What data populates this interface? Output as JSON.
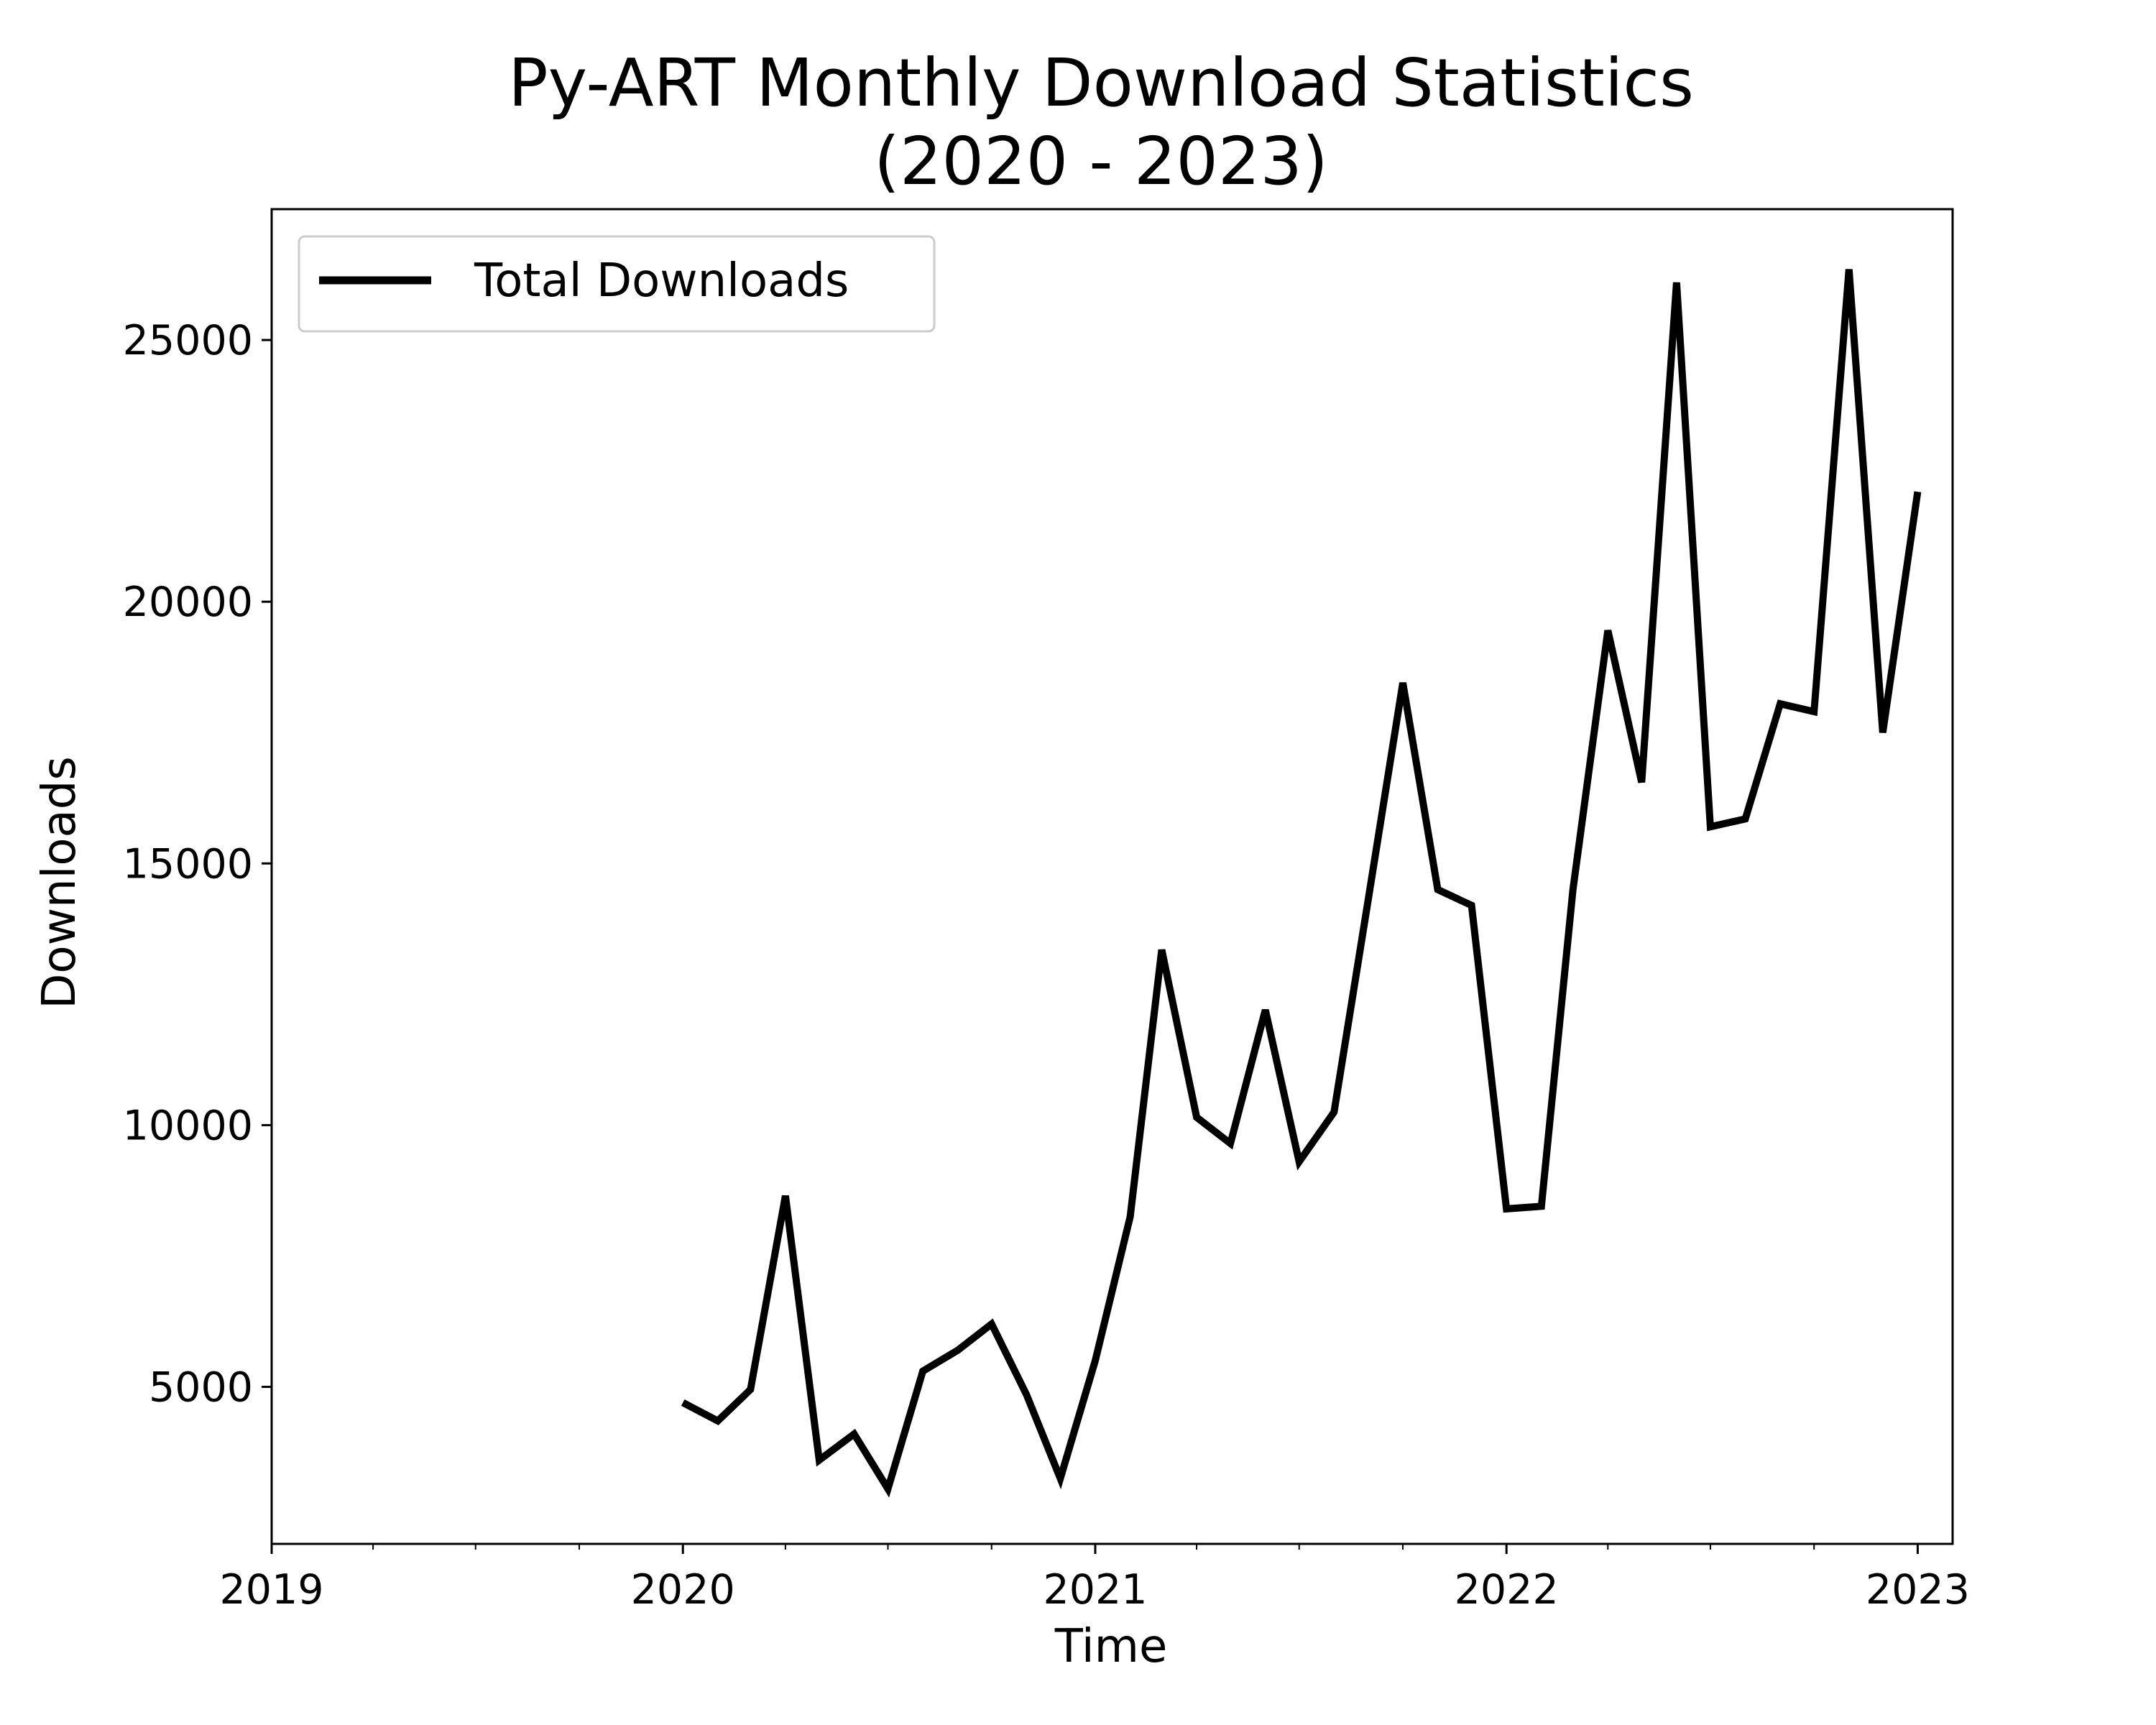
{
  "chart_data": {
    "type": "line",
    "title_lines": [
      "Py-ART Monthly Download Statistics",
      "(2020 - 2023)"
    ],
    "xlabel": "Time",
    "ylabel": "Downloads",
    "xlim": [
      "2019-01-01",
      "2023-02-01"
    ],
    "ylim": [
      2000,
      27500
    ],
    "x_ticks": [
      "2019",
      "2020",
      "2021",
      "2022",
      "2023"
    ],
    "x_tick_dates": [
      "2019-01-01",
      "2020-01-01",
      "2021-01-01",
      "2022-01-01",
      "2023-01-01"
    ],
    "y_ticks": [
      5000,
      10000,
      15000,
      20000,
      25000
    ],
    "grid": false,
    "legend_position": "upper-left",
    "line_color": "#000000",
    "series": [
      {
        "name": "Total Downloads",
        "x": [
          "2020-01-01",
          "2020-02-01",
          "2020-03-01",
          "2020-04-01",
          "2020-05-01",
          "2020-06-01",
          "2020-07-01",
          "2020-08-01",
          "2020-09-01",
          "2020-10-01",
          "2020-11-01",
          "2020-12-01",
          "2021-01-01",
          "2021-02-01",
          "2021-03-01",
          "2021-04-01",
          "2021-05-01",
          "2021-06-01",
          "2021-07-01",
          "2021-08-01",
          "2021-09-01",
          "2021-10-01",
          "2021-11-01",
          "2021-12-01",
          "2022-01-01",
          "2022-02-01",
          "2022-03-01",
          "2022-04-01",
          "2022-05-01",
          "2022-06-01",
          "2022-07-01",
          "2022-08-01",
          "2022-09-01",
          "2022-10-01",
          "2022-11-01",
          "2022-12-01",
          "2023-01-01"
        ],
        "values": [
          4700,
          4350,
          4950,
          8650,
          3600,
          4100,
          3050,
          5300,
          5700,
          6200,
          4850,
          3250,
          5500,
          8250,
          13350,
          10150,
          9650,
          12200,
          9300,
          10250,
          14400,
          18450,
          14500,
          14200,
          8400,
          8450,
          14500,
          19450,
          16550,
          26100,
          15700,
          15850,
          18050,
          17900,
          26350,
          17500,
          22100
        ]
      }
    ]
  }
}
